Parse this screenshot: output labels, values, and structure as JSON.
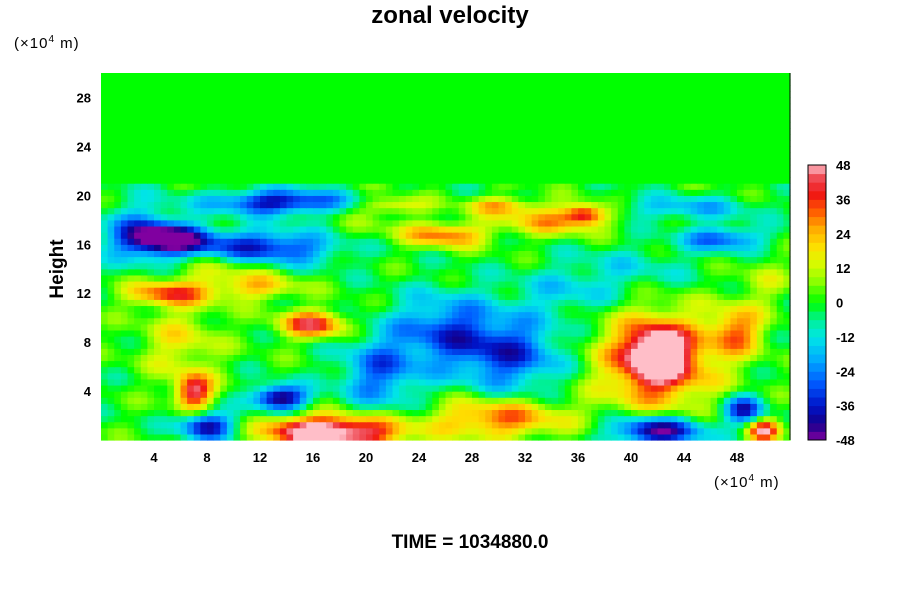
{
  "chart_data": {
    "type": "heatmap",
    "title": "zonal velocity",
    "ylabel": "Height",
    "xlabel": "",
    "x_unit_prefix": "(×10",
    "x_unit_exp": "4",
    "x_unit_suffix": " m)",
    "y_unit_prefix": "(×10",
    "y_unit_exp": "4",
    "y_unit_suffix": " m)",
    "xlim": [
      0,
      52
    ],
    "ylim": [
      0,
      30
    ],
    "x_ticks": [
      "4",
      "8",
      "12",
      "16",
      "20",
      "24",
      "28",
      "32",
      "36",
      "40",
      "44",
      "48"
    ],
    "x_tick_values": [
      4,
      8,
      12,
      16,
      20,
      24,
      28,
      32,
      36,
      40,
      44,
      48
    ],
    "y_ticks": [
      "4",
      "8",
      "12",
      "16",
      "20",
      "24",
      "28"
    ],
    "y_tick_values": [
      4,
      8,
      12,
      16,
      20,
      24,
      28
    ],
    "colorbar": {
      "min": -48,
      "max": 48,
      "labels": [
        "48",
        "36",
        "24",
        "12",
        "0",
        "-12",
        "-24",
        "-36",
        "-48"
      ],
      "label_values": [
        48,
        36,
        24,
        12,
        0,
        -12,
        -24,
        -36,
        -48
      ]
    },
    "field": {
      "background": 0,
      "upper_layer": {
        "from": 21,
        "to": 30,
        "value": 0
      },
      "features": [
        {
          "x": 13.5,
          "y": 19.5,
          "rx": 5,
          "ry": 1.0,
          "value": -40
        },
        {
          "x": 5,
          "y": 16.5,
          "rx": 3,
          "ry": 1.2,
          "value": -44
        },
        {
          "x": 12,
          "y": 15.8,
          "rx": 6,
          "ry": 1.4,
          "value": -38
        },
        {
          "x": 3,
          "y": 17.0,
          "rx": 3,
          "ry": 2.5,
          "value": -22
        },
        {
          "x": 20,
          "y": 17,
          "rx": 4,
          "ry": 1.5,
          "value": 6
        },
        {
          "x": 26,
          "y": 16.8,
          "rx": 3,
          "ry": 1.0,
          "value": 30
        },
        {
          "x": 34,
          "y": 18,
          "rx": 4,
          "ry": 1.2,
          "value": 24
        },
        {
          "x": 36.5,
          "y": 18.5,
          "rx": 1.5,
          "ry": 0.8,
          "value": 34
        },
        {
          "x": 30,
          "y": 19.2,
          "rx": 2.5,
          "ry": 0.7,
          "value": 22
        },
        {
          "x": 22,
          "y": 19.2,
          "rx": 2.5,
          "ry": 0.7,
          "value": 20
        },
        {
          "x": 47,
          "y": 16.5,
          "rx": 3,
          "ry": 1.0,
          "value": -28
        },
        {
          "x": 44,
          "y": 19,
          "rx": 5,
          "ry": 1.0,
          "value": -18
        },
        {
          "x": 5,
          "y": 12,
          "rx": 3,
          "ry": 1.0,
          "value": 32
        },
        {
          "x": 12,
          "y": 12.5,
          "rx": 3,
          "ry": 1.0,
          "value": 18
        },
        {
          "x": 16,
          "y": 9.5,
          "rx": 2.5,
          "ry": 1.1,
          "value": 40
        },
        {
          "x": 6,
          "y": 8,
          "rx": 3,
          "ry": 3,
          "value": 16
        },
        {
          "x": 7,
          "y": 4,
          "rx": 1.4,
          "ry": 1.4,
          "value": 44
        },
        {
          "x": 13.5,
          "y": 3.5,
          "rx": 2,
          "ry": 1.0,
          "value": -48
        },
        {
          "x": 21,
          "y": 5.5,
          "rx": 3,
          "ry": 3,
          "value": -26
        },
        {
          "x": 26,
          "y": 9,
          "rx": 4,
          "ry": 3,
          "value": -28
        },
        {
          "x": 31,
          "y": 7,
          "rx": 4,
          "ry": 3,
          "value": -30
        },
        {
          "x": 35,
          "y": 12,
          "rx": 4,
          "ry": 2,
          "value": -12
        },
        {
          "x": 42,
          "y": 6.5,
          "rx": 4.5,
          "ry": 4,
          "value": 40
        },
        {
          "x": 42,
          "y": 7.0,
          "rx": 2,
          "ry": 2,
          "value": 46
        },
        {
          "x": 48,
          "y": 9,
          "rx": 2,
          "ry": 2,
          "value": 28
        },
        {
          "x": 48.5,
          "y": 2.5,
          "rx": 1.5,
          "ry": 1.2,
          "value": -36
        },
        {
          "x": 42,
          "y": 0.8,
          "rx": 3.5,
          "ry": 1.2,
          "value": -48
        },
        {
          "x": 19,
          "y": 0.6,
          "rx": 4,
          "ry": 1.4,
          "value": 48
        },
        {
          "x": 15,
          "y": 0.8,
          "rx": 3,
          "ry": 1.2,
          "value": 36
        },
        {
          "x": 30,
          "y": 1.8,
          "rx": 5,
          "ry": 1.6,
          "value": 32
        },
        {
          "x": 8,
          "y": 1.2,
          "rx": 2,
          "ry": 1.1,
          "value": -40
        },
        {
          "x": 50,
          "y": 0.8,
          "rx": 1.2,
          "ry": 0.9,
          "value": 44
        },
        {
          "x": 9,
          "y": 14,
          "rx": 4,
          "ry": 2,
          "value": 14
        },
        {
          "x": 40,
          "y": 14,
          "rx": 5,
          "ry": 2,
          "value": -10
        },
        {
          "x": 50,
          "y": 13,
          "rx": 2,
          "ry": 2,
          "value": 10
        }
      ]
    }
  },
  "footer": {
    "time_label": "TIME = 1034880.0"
  }
}
